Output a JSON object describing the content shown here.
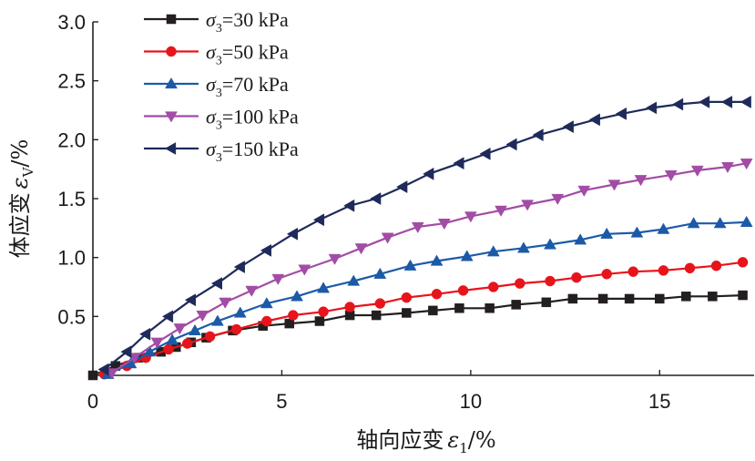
{
  "chart_data": {
    "type": "line",
    "xlabel": "轴向应变ε1/%",
    "xlabel_parts": {
      "main": "轴向应变",
      "sym": "ε",
      "sub": "1",
      "unit": "/%"
    },
    "ylabel": "体应变εV/%",
    "ylabel_parts": {
      "main": "体应变",
      "sym": "ε",
      "sub": "V",
      "unit": "/%"
    },
    "xlim": [
      0,
      17.5
    ],
    "ylim": [
      0,
      3.0
    ],
    "xticks": [
      "0",
      "5",
      "10",
      "15"
    ],
    "yticks": [
      "0.5",
      "1.0",
      "1.5",
      "2.0",
      "2.5",
      "3.0"
    ],
    "legend_position": "top-left",
    "grid": false,
    "series": [
      {
        "name": "σ3=30 kPa",
        "label_sym": "σ",
        "label_sub": "3",
        "label_rest": "=30 kPa",
        "color": "#231f20",
        "marker": "square",
        "x": [
          0.0,
          0.6,
          1.2,
          1.8,
          2.2,
          2.6,
          3.0,
          3.7,
          4.5,
          5.2,
          6.0,
          6.8,
          7.5,
          8.3,
          9.0,
          9.7,
          10.5,
          11.2,
          12.0,
          12.7,
          13.5,
          14.2,
          15.0,
          15.7,
          16.4,
          17.2
        ],
        "y": [
          0.0,
          0.08,
          0.15,
          0.2,
          0.24,
          0.28,
          0.32,
          0.38,
          0.42,
          0.44,
          0.46,
          0.51,
          0.51,
          0.53,
          0.55,
          0.57,
          0.57,
          0.6,
          0.62,
          0.65,
          0.65,
          0.65,
          0.65,
          0.67,
          0.67,
          0.68
        ]
      },
      {
        "name": "σ3=50 kPa",
        "label_sym": "σ",
        "label_sub": "3",
        "label_rest": "=50 kPa",
        "color": "#e8141b",
        "marker": "circle",
        "x": [
          0.3,
          0.9,
          1.4,
          2.0,
          2.5,
          3.1,
          3.8,
          4.6,
          5.3,
          6.1,
          6.8,
          7.6,
          8.3,
          9.1,
          9.8,
          10.6,
          11.3,
          12.1,
          12.8,
          13.6,
          14.3,
          15.1,
          15.8,
          16.5,
          17.2
        ],
        "y": [
          0.01,
          0.08,
          0.15,
          0.22,
          0.27,
          0.33,
          0.39,
          0.46,
          0.51,
          0.54,
          0.58,
          0.61,
          0.66,
          0.69,
          0.72,
          0.75,
          0.78,
          0.8,
          0.83,
          0.86,
          0.88,
          0.89,
          0.91,
          0.93,
          0.96
        ]
      },
      {
        "name": "σ3=70 kPa",
        "label_sym": "σ",
        "label_sub": "3",
        "label_rest": "=70 kPa",
        "color": "#1c5aa8",
        "marker": "triangle-up",
        "x": [
          0.4,
          1.0,
          1.5,
          2.1,
          2.7,
          3.3,
          3.9,
          4.6,
          5.4,
          6.1,
          6.9,
          7.6,
          8.4,
          9.1,
          9.9,
          10.6,
          11.4,
          12.1,
          12.9,
          13.6,
          14.4,
          15.1,
          15.9,
          16.6,
          17.3
        ],
        "y": [
          0.01,
          0.1,
          0.2,
          0.3,
          0.38,
          0.46,
          0.53,
          0.61,
          0.67,
          0.74,
          0.8,
          0.86,
          0.93,
          0.97,
          1.01,
          1.05,
          1.08,
          1.11,
          1.15,
          1.2,
          1.21,
          1.24,
          1.29,
          1.29,
          1.3
        ]
      },
      {
        "name": "σ3=100 kPa",
        "label_sym": "σ",
        "label_sub": "3",
        "label_rest": "=100 kPa",
        "color": "#a24ca6",
        "marker": "triangle-down",
        "x": [
          0.5,
          1.1,
          1.7,
          2.3,
          2.9,
          3.5,
          4.2,
          4.9,
          5.6,
          6.4,
          7.1,
          7.8,
          8.6,
          9.3,
          10.0,
          10.8,
          11.5,
          12.3,
          13.0,
          13.8,
          14.5,
          15.3,
          16.0,
          16.8,
          17.3
        ],
        "y": [
          0.02,
          0.15,
          0.28,
          0.4,
          0.51,
          0.62,
          0.72,
          0.82,
          0.9,
          0.99,
          1.08,
          1.17,
          1.26,
          1.29,
          1.35,
          1.4,
          1.45,
          1.5,
          1.57,
          1.62,
          1.66,
          1.7,
          1.74,
          1.77,
          1.8
        ]
      },
      {
        "name": "σ3=150 kPa",
        "label_sym": "σ",
        "label_sub": "3",
        "label_rest": "=150 kPa",
        "color": "#1e2a5a",
        "marker": "triangle-left",
        "x": [
          0.3,
          0.9,
          1.4,
          2.0,
          2.6,
          3.3,
          3.9,
          4.6,
          5.3,
          6.0,
          6.8,
          7.5,
          8.2,
          8.9,
          9.7,
          10.4,
          11.1,
          11.8,
          12.6,
          13.3,
          14.0,
          14.8,
          15.5,
          16.2,
          16.8,
          17.3
        ],
        "y": [
          0.05,
          0.2,
          0.35,
          0.5,
          0.64,
          0.78,
          0.92,
          1.06,
          1.2,
          1.32,
          1.44,
          1.5,
          1.6,
          1.71,
          1.8,
          1.88,
          1.96,
          2.04,
          2.11,
          2.17,
          2.22,
          2.27,
          2.3,
          2.32,
          2.32,
          2.32
        ]
      }
    ]
  }
}
